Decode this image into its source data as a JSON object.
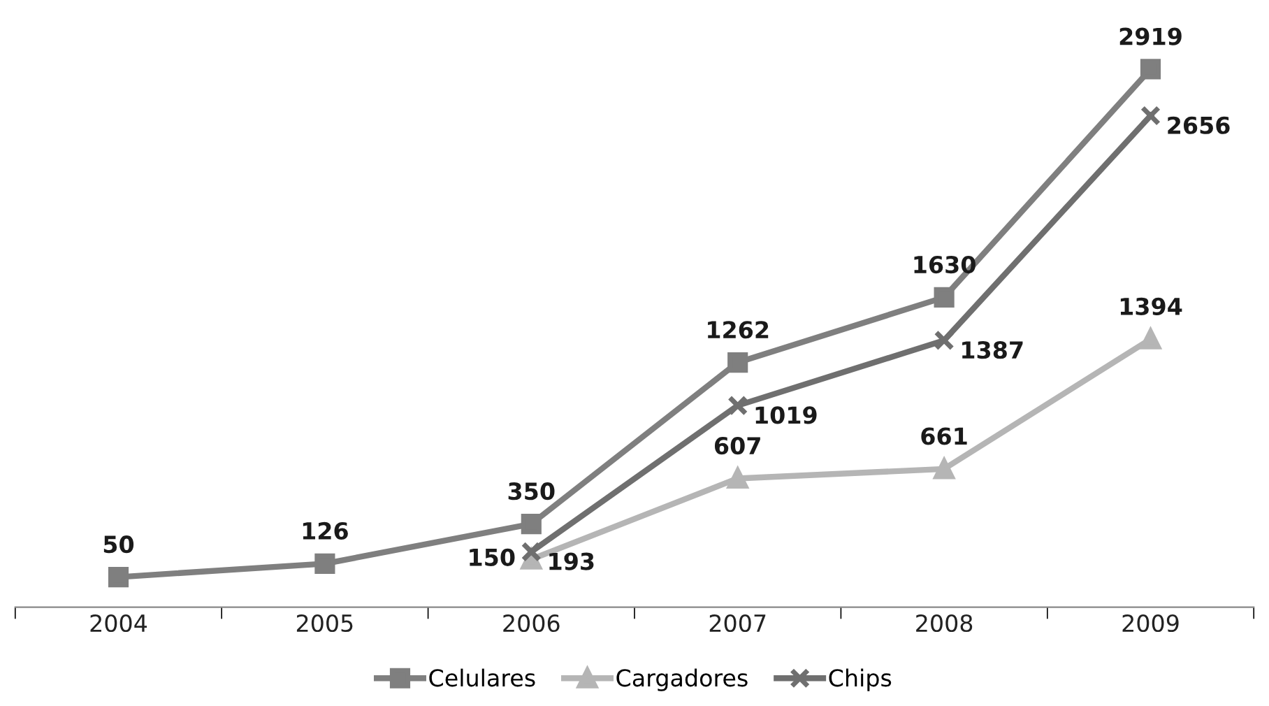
{
  "chart_data": {
    "type": "line",
    "categories": [
      "2004",
      "2005",
      "2006",
      "2007",
      "2008",
      "2009"
    ],
    "series": [
      {
        "name": "Celulares",
        "color": "#7f7f7f",
        "marker": "square",
        "values": [
          50,
          126,
          350,
          1262,
          1630,
          2919
        ]
      },
      {
        "name": "Cargadores",
        "color": "#b5b5b5",
        "marker": "triangle",
        "values": [
          null,
          null,
          150,
          607,
          661,
          1394
        ]
      },
      {
        "name": "Chips",
        "color": "#6f6f6f",
        "marker": "cross",
        "values": [
          null,
          null,
          193,
          1019,
          1387,
          2656
        ]
      }
    ],
    "data_labels": true,
    "legend": "bottom",
    "grid": false,
    "line_style": "solid"
  }
}
